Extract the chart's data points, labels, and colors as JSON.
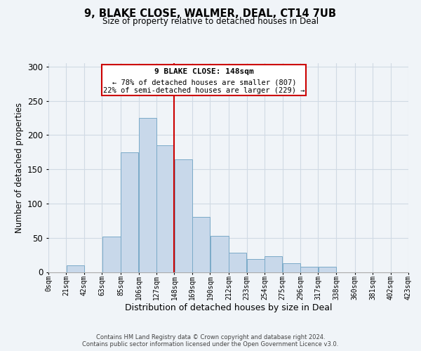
{
  "title": "9, BLAKE CLOSE, WALMER, DEAL, CT14 7UB",
  "subtitle": "Size of property relative to detached houses in Deal",
  "xlabel": "Distribution of detached houses by size in Deal",
  "ylabel": "Number of detached properties",
  "bar_left_edges": [
    0,
    21,
    42,
    63,
    85,
    106,
    127,
    148,
    169,
    190,
    212,
    233,
    254,
    275,
    296,
    317,
    338,
    360,
    381,
    402
  ],
  "bar_widths": [
    21,
    21,
    21,
    22,
    21,
    21,
    21,
    21,
    21,
    22,
    21,
    21,
    21,
    21,
    21,
    21,
    22,
    21,
    21,
    21
  ],
  "bar_heights": [
    0,
    10,
    0,
    52,
    175,
    225,
    185,
    165,
    80,
    53,
    28,
    19,
    23,
    13,
    8,
    8,
    0,
    0,
    0,
    0
  ],
  "tick_labels": [
    "0sqm",
    "21sqm",
    "42sqm",
    "63sqm",
    "85sqm",
    "106sqm",
    "127sqm",
    "148sqm",
    "169sqm",
    "190sqm",
    "212sqm",
    "233sqm",
    "254sqm",
    "275sqm",
    "296sqm",
    "317sqm",
    "338sqm",
    "360sqm",
    "381sqm",
    "402sqm",
    "423sqm"
  ],
  "tick_positions": [
    0,
    21,
    42,
    63,
    85,
    106,
    127,
    148,
    169,
    190,
    212,
    233,
    254,
    275,
    296,
    317,
    338,
    360,
    381,
    402,
    423
  ],
  "bar_color": "#c8d8ea",
  "bar_edge_color": "#7aaac8",
  "vline_x": 148,
  "vline_color": "#cc0000",
  "annotation_title": "9 BLAKE CLOSE: 148sqm",
  "annotation_line1": "← 78% of detached houses are smaller (807)",
  "annotation_line2": "22% of semi-detached houses are larger (229) →",
  "annotation_box_color": "#cc0000",
  "ylim": [
    0,
    305
  ],
  "yticks": [
    0,
    50,
    100,
    150,
    200,
    250,
    300
  ],
  "xlim": [
    0,
    423
  ],
  "footer1": "Contains HM Land Registry data © Crown copyright and database right 2024.",
  "footer2": "Contains public sector information licensed under the Open Government Licence v3.0.",
  "bg_color": "#f0f4f8",
  "grid_color": "#d0dae4"
}
